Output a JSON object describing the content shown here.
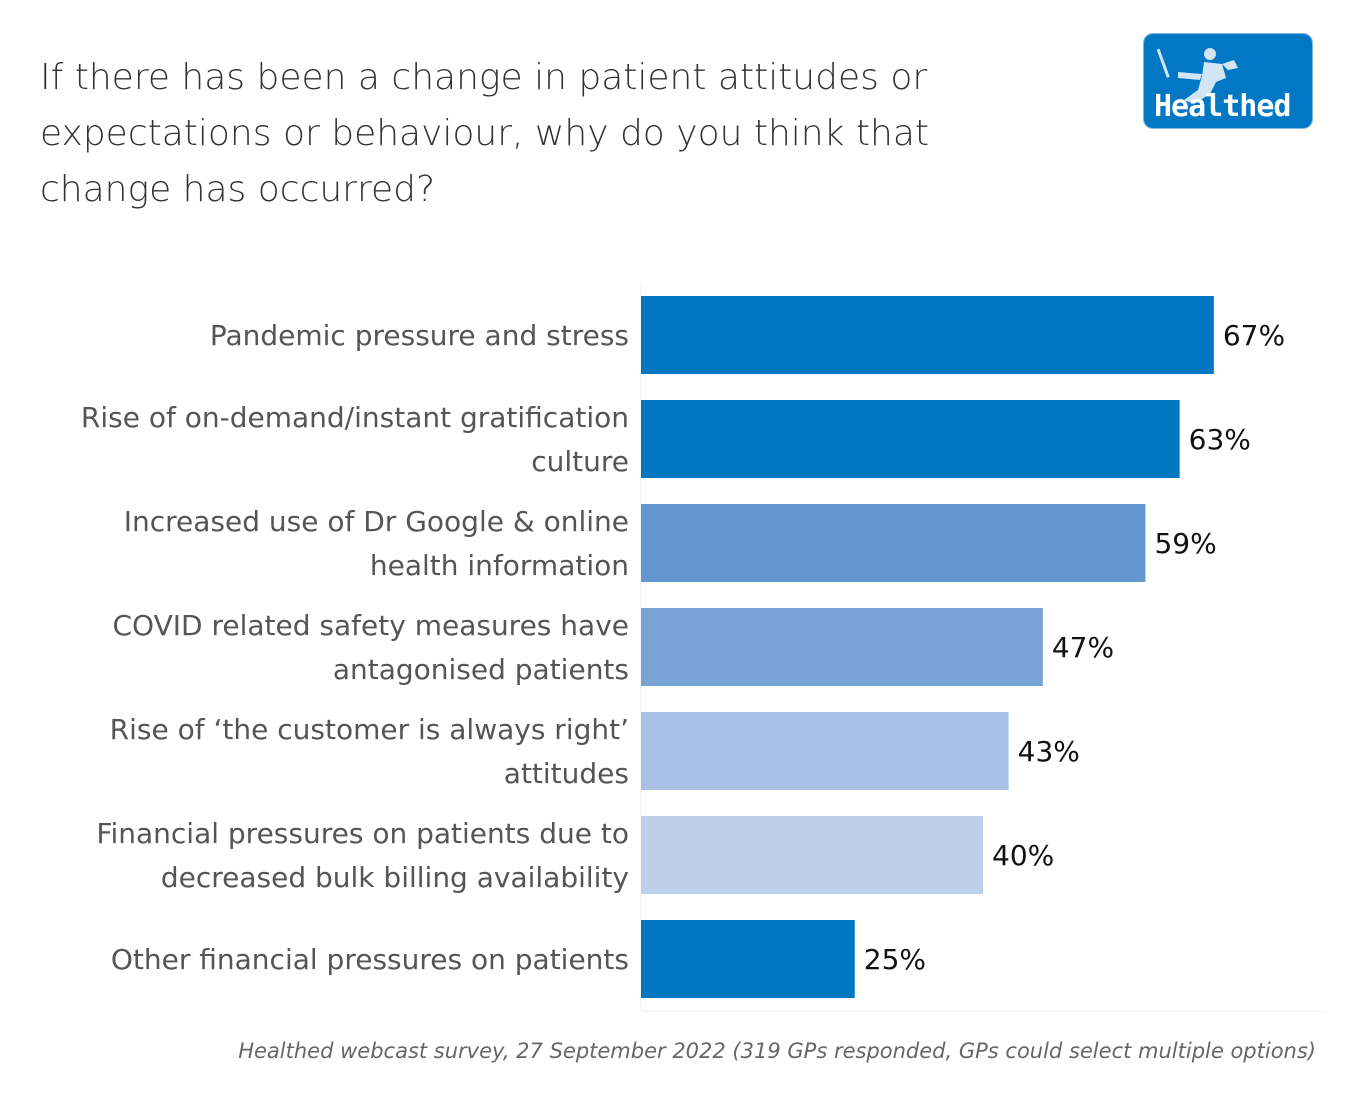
{
  "chart_data": {
    "type": "bar",
    "orientation": "horizontal",
    "title": "If there has been a change in patient attitudes or expectations or behaviour, why do you think that change has occurred?",
    "categories": [
      [
        "Pandemic pressure and stress"
      ],
      [
        "Rise of on-demand/instant gratification",
        "culture"
      ],
      [
        "Increased use of Dr Google & online",
        "health information"
      ],
      [
        "COVID related safety measures have",
        "antagonised patients"
      ],
      [
        "Rise of ‘the customer is always right’",
        "attitudes"
      ],
      [
        "Financial pressures on patients due to",
        "decreased bulk billing availability"
      ],
      [
        "Other financial pressures on patients"
      ]
    ],
    "values": [
      67,
      63,
      59,
      47,
      43,
      40,
      25
    ],
    "labels": [
      "67%",
      "63%",
      "59%",
      "47%",
      "43%",
      "40%",
      "25%"
    ],
    "colors": [
      "#0277c1",
      "#0277c1",
      "#6496cf",
      "#7aa3d5",
      "#a9c1e6",
      "#bdd0eb",
      "#0277c1"
    ],
    "xlim": [
      0,
      80
    ],
    "grid": false
  },
  "logo": {
    "text": "Healthed"
  },
  "footer": "Healthed webcast survey, 27 September 2022 (319 GPs responded, GPs could select multiple options)"
}
